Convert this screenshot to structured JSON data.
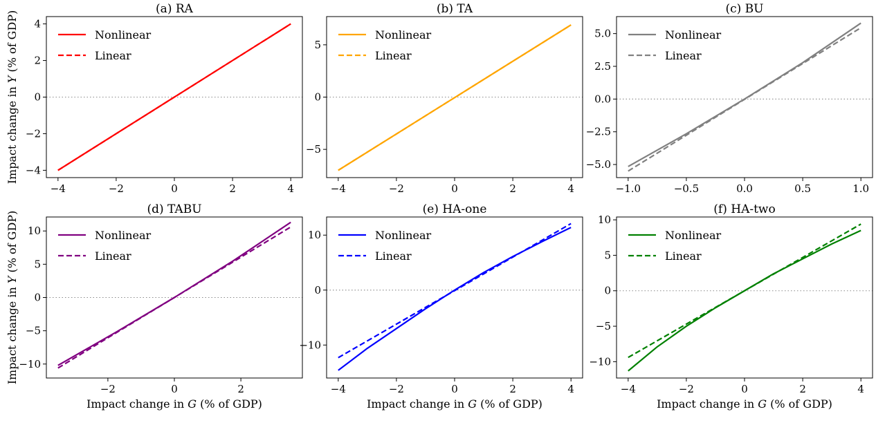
{
  "chart_data": [
    {
      "id": "a",
      "type": "line",
      "title": "(a) RA",
      "xlabel": "",
      "ylabel": "Impact change in Y (% of GDP)",
      "xlim": [
        -4.4,
        4.4
      ],
      "ylim": [
        -4.4,
        4.4
      ],
      "xticks": [
        -4,
        -2,
        0,
        2,
        4
      ],
      "yticks": [
        -4,
        -2,
        0,
        2,
        4
      ],
      "xtick_labels": [
        "−4",
        "−2",
        "0",
        "2",
        "4"
      ],
      "ytick_labels": [
        "−4",
        "−2",
        "0",
        "2",
        "4"
      ],
      "zero_line": true,
      "legend_position": "upper-left",
      "color": "#ff0000",
      "series": [
        {
          "name": "Nonlinear",
          "style": "solid",
          "x": [
            -4,
            4
          ],
          "y": [
            -4,
            4
          ]
        },
        {
          "name": "Linear",
          "style": "dashed",
          "x": [
            -4,
            4
          ],
          "y": [
            -4,
            4
          ]
        }
      ]
    },
    {
      "id": "b",
      "type": "line",
      "title": "(b) TA",
      "xlabel": "",
      "ylabel": "",
      "xlim": [
        -4.4,
        4.4
      ],
      "ylim": [
        -7.7,
        7.7
      ],
      "xticks": [
        -4,
        -2,
        0,
        2,
        4
      ],
      "yticks": [
        -5,
        0,
        5
      ],
      "xtick_labels": [
        "−4",
        "−2",
        "0",
        "2",
        "4"
      ],
      "ytick_labels": [
        "−5",
        "0",
        "5"
      ],
      "zero_line": true,
      "legend_position": "upper-left",
      "color": "#ffa500",
      "series": [
        {
          "name": "Nonlinear",
          "style": "solid",
          "x": [
            -4,
            4
          ],
          "y": [
            -7.0,
            6.9
          ]
        },
        {
          "name": "Linear",
          "style": "dashed",
          "x": [
            -4,
            4
          ],
          "y": [
            -7.0,
            6.9
          ]
        }
      ]
    },
    {
      "id": "c",
      "type": "line",
      "title": "(c) BU",
      "xlabel": "",
      "ylabel": "",
      "xlim": [
        -1.1,
        1.1
      ],
      "ylim": [
        -6.0,
        6.3
      ],
      "xticks": [
        -1.0,
        -0.5,
        0.0,
        0.5,
        1.0
      ],
      "yticks": [
        -5.0,
        -2.5,
        0.0,
        2.5,
        5.0
      ],
      "xtick_labels": [
        "−1.0",
        "−0.5",
        "0.0",
        "0.5",
        "1.0"
      ],
      "ytick_labels": [
        "−5.0",
        "−2.5",
        "0.0",
        "2.5",
        "5.0"
      ],
      "zero_line": true,
      "legend_position": "upper-left",
      "color": "#808080",
      "series": [
        {
          "name": "Nonlinear",
          "style": "solid",
          "x": [
            -1,
            -0.5,
            0,
            0.5,
            1
          ],
          "y": [
            -5.15,
            -2.65,
            0.0,
            2.78,
            5.8
          ]
        },
        {
          "name": "Linear",
          "style": "dashed",
          "x": [
            -1,
            1
          ],
          "y": [
            -5.5,
            5.45
          ]
        }
      ]
    },
    {
      "id": "d",
      "type": "line",
      "title": "(d) TABU",
      "xlabel": "Impact change in G (% of GDP)",
      "ylabel": "Impact change in Y (% of GDP)",
      "xlim": [
        -3.85,
        3.85
      ],
      "ylim": [
        -12.1,
        12.1
      ],
      "xticks": [
        -2,
        0,
        2
      ],
      "yticks": [
        -10,
        -5,
        0,
        5,
        10
      ],
      "xtick_labels": [
        "−2",
        "0",
        "2"
      ],
      "ytick_labels": [
        "−10",
        "−5",
        "0",
        "5",
        "10"
      ],
      "zero_line": true,
      "legend_position": "upper-left",
      "color": "#800080",
      "series": [
        {
          "name": "Nonlinear",
          "style": "solid",
          "x": [
            -3.5,
            -1.75,
            0,
            1.75,
            3.5
          ],
          "y": [
            -10.2,
            -5.2,
            0.0,
            5.45,
            11.3
          ]
        },
        {
          "name": "Linear",
          "style": "dashed",
          "x": [
            -3.5,
            3.5
          ],
          "y": [
            -10.6,
            10.6
          ]
        }
      ]
    },
    {
      "id": "e",
      "type": "line",
      "title": "(e) HA-one",
      "xlabel": "Impact change in G (% of GDP)",
      "ylabel": "",
      "xlim": [
        -4.4,
        4.4
      ],
      "ylim": [
        -16.0,
        13.3
      ],
      "xticks": [
        -4,
        -2,
        0,
        2,
        4
      ],
      "yticks": [
        -10,
        0,
        10
      ],
      "xtick_labels": [
        "−4",
        "−2",
        "0",
        "2",
        "4"
      ],
      "ytick_labels": [
        "−10",
        "0",
        "10"
      ],
      "zero_line": true,
      "legend_position": "upper-left",
      "color": "#0000ff",
      "series": [
        {
          "name": "Nonlinear",
          "style": "solid",
          "x": [
            -4,
            -3,
            -2,
            -1,
            0,
            1,
            2,
            3,
            4
          ],
          "y": [
            -14.6,
            -10.6,
            -7.0,
            -3.4,
            0.0,
            3.2,
            6.1,
            8.8,
            11.4
          ]
        },
        {
          "name": "Linear",
          "style": "dashed",
          "x": [
            -4,
            4
          ],
          "y": [
            -12.3,
            12.1
          ]
        }
      ]
    },
    {
      "id": "f",
      "type": "line",
      "title": "(f) HA-two",
      "xlabel": "Impact change in G (% of GDP)",
      "ylabel": "",
      "xlim": [
        -4.4,
        4.4
      ],
      "ylim": [
        -12.3,
        10.4
      ],
      "xticks": [
        -4,
        -2,
        0,
        2,
        4
      ],
      "yticks": [
        -10,
        -5,
        0,
        5,
        10
      ],
      "xtick_labels": [
        "−4",
        "−2",
        "0",
        "2",
        "4"
      ],
      "ytick_labels": [
        "−10",
        "−5",
        "0",
        "5",
        "10"
      ],
      "zero_line": true,
      "legend_position": "upper-left",
      "color": "#008000",
      "series": [
        {
          "name": "Nonlinear",
          "style": "solid",
          "x": [
            -4,
            -3,
            -2,
            -1,
            0,
            1,
            2,
            3,
            4
          ],
          "y": [
            -11.3,
            -7.9,
            -5.0,
            -2.4,
            0.0,
            2.4,
            4.5,
            6.6,
            8.5
          ]
        },
        {
          "name": "Linear",
          "style": "dashed",
          "x": [
            -4,
            4
          ],
          "y": [
            -9.4,
            9.4
          ]
        }
      ]
    }
  ]
}
